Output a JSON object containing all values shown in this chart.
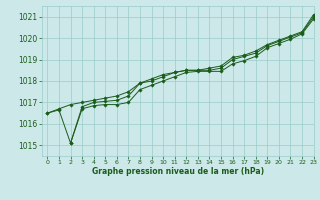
{
  "title": "Graphe pression niveau de la mer (hPa)",
  "bg_color": "#cce8e8",
  "grid_color": "#99cccc",
  "line_color": "#1a5c1a",
  "xlim": [
    -0.5,
    23
  ],
  "ylim": [
    1014.5,
    1021.5
  ],
  "yticks": [
    1015,
    1016,
    1017,
    1018,
    1019,
    1020,
    1021
  ],
  "xticks": [
    0,
    1,
    2,
    3,
    4,
    5,
    6,
    7,
    8,
    9,
    10,
    11,
    12,
    13,
    14,
    15,
    16,
    17,
    18,
    19,
    20,
    21,
    22,
    23
  ],
  "series1_x": [
    0,
    1,
    2,
    3,
    4,
    5,
    6,
    7,
    8,
    9,
    10,
    11,
    12,
    13,
    14,
    15,
    16,
    17,
    18,
    19,
    20,
    21,
    22,
    23
  ],
  "series1_y": [
    1016.5,
    1016.7,
    1016.9,
    1017.0,
    1017.1,
    1017.2,
    1017.3,
    1017.5,
    1017.9,
    1018.1,
    1018.3,
    1018.4,
    1018.5,
    1018.5,
    1018.6,
    1018.7,
    1019.1,
    1019.2,
    1019.4,
    1019.7,
    1019.9,
    1020.1,
    1020.3,
    1021.1
  ],
  "series2_x": [
    0,
    1,
    2,
    3,
    4,
    5,
    6,
    7,
    8,
    9,
    10,
    11,
    12,
    13,
    14,
    15,
    16,
    17,
    18,
    19,
    20,
    21,
    22,
    23
  ],
  "series2_y": [
    1016.5,
    1016.65,
    1015.1,
    1016.8,
    1017.0,
    1017.05,
    1017.1,
    1017.3,
    1017.9,
    1018.0,
    1018.2,
    1018.4,
    1018.5,
    1018.5,
    1018.5,
    1018.6,
    1019.0,
    1019.15,
    1019.3,
    1019.65,
    1019.85,
    1020.05,
    1020.25,
    1021.0
  ],
  "series3_x": [
    2,
    3,
    4,
    5,
    6,
    7,
    8,
    9,
    10,
    11,
    12,
    13,
    14,
    15,
    16,
    17,
    18,
    19,
    20,
    21,
    22,
    23
  ],
  "series3_y": [
    1015.1,
    1016.7,
    1016.85,
    1016.9,
    1016.9,
    1017.0,
    1017.6,
    1017.8,
    1018.0,
    1018.2,
    1018.4,
    1018.45,
    1018.45,
    1018.45,
    1018.8,
    1018.95,
    1019.15,
    1019.55,
    1019.75,
    1019.95,
    1020.2,
    1020.9
  ]
}
